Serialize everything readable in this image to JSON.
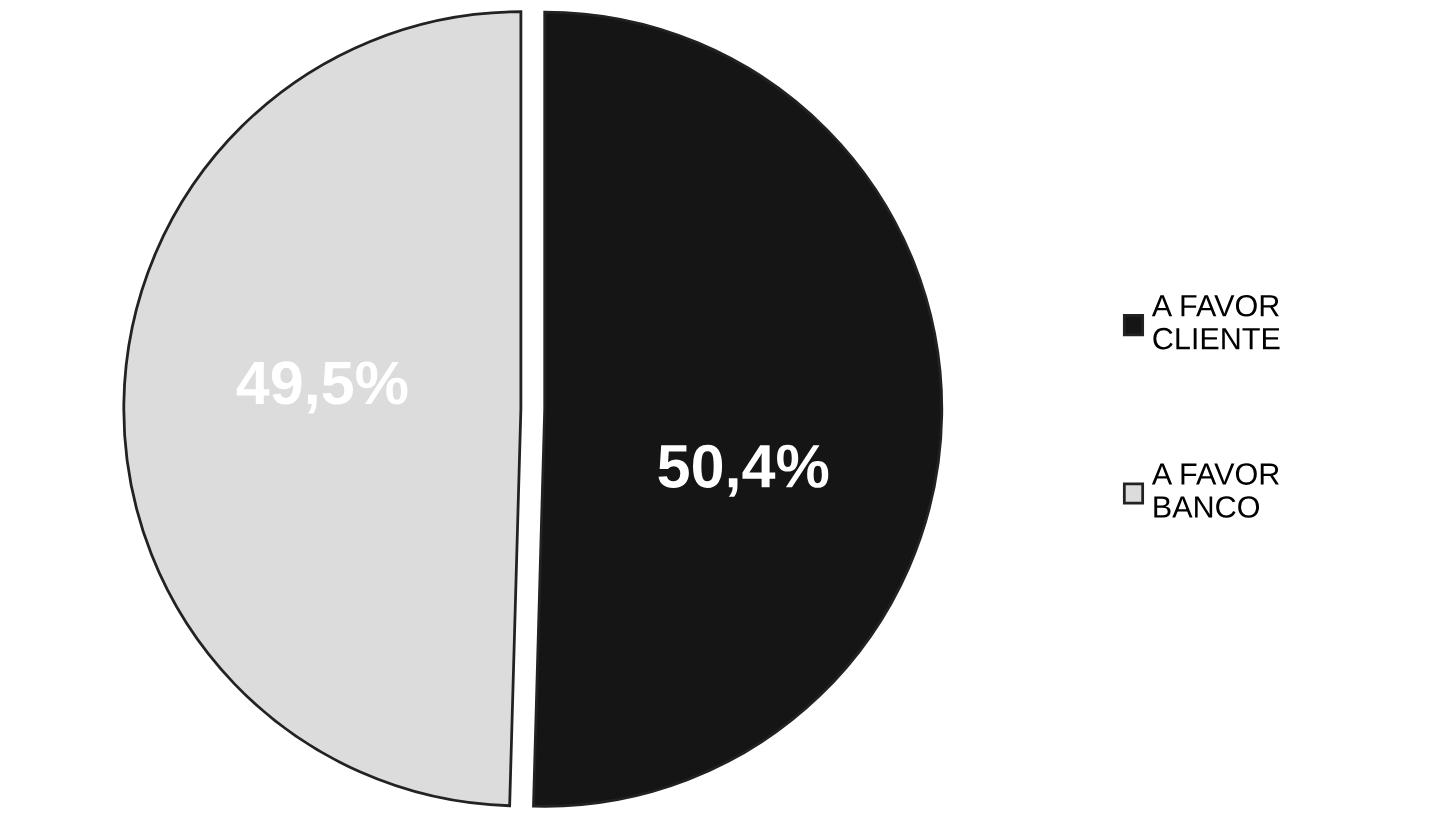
{
  "chart_data": {
    "type": "pie",
    "categories": [
      "A FAVOR\nCLIENTE",
      "A FAVOR\nBANCO"
    ],
    "values": [
      50.4,
      49.5
    ],
    "colors": [
      "#151515",
      "#dcdcdc"
    ],
    "value_labels": [
      "50,4%",
      "49,5%"
    ],
    "legend": "right"
  }
}
